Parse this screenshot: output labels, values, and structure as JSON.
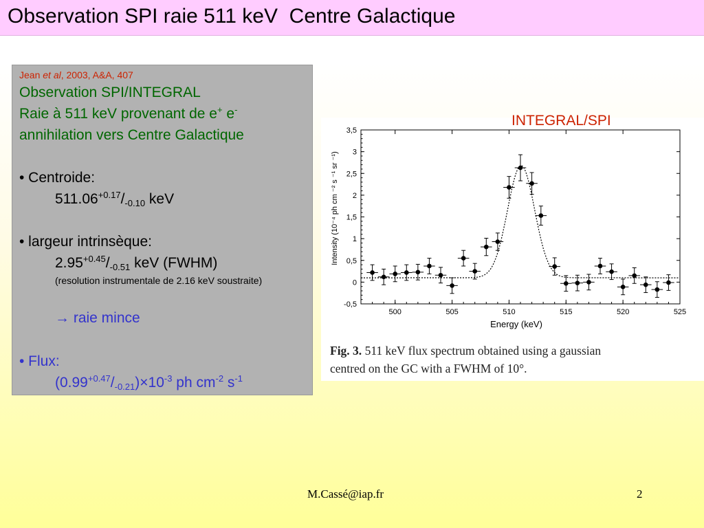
{
  "slide": {
    "title": "Observation SPI raie 511 keV  Centre Galactique",
    "footer_email": "M.Cassé@iap.fr",
    "page_number": "2"
  },
  "panel": {
    "ref_author": "Jean ",
    "ref_etal": "et al",
    "ref_rest": ", 2003, A&A, 407",
    "line1": "Observation SPI/INTEGRAL",
    "line2_a": "Raie à 511 keV provenant de e",
    "line2_sup1": "+",
    "line2_b": " e",
    "line2_sup2": "-",
    "line3": "annihilation vers Centre Galactique",
    "centroid_label": "•  Centroide:",
    "centroid_value": "511.06",
    "centroid_plus": "+0.17",
    "centroid_slash": "/",
    "centroid_minus": "-0.10",
    "centroid_unit": " keV",
    "width_label": "• largeur intrinsèque:",
    "width_value": "2.95",
    "width_plus": "+0.45",
    "width_slash": "/",
    "width_minus": "-0.51",
    "width_unit": " keV (FWHM)",
    "width_note": "(resolution instrumentale de 2.16 keV soustraite)",
    "arrow": "→",
    "conclusion": " raie mince",
    "flux_label": "• Flux:",
    "flux_open": "(0.99",
    "flux_plus": "+0.47",
    "flux_slash": "/",
    "flux_minus": "-0.21",
    "flux_times": ")×10",
    "flux_exp": "-3",
    "flux_unit1": " ph cm",
    "flux_exp2": "-2",
    "flux_unit2": " s",
    "flux_exp3": "-1"
  },
  "figure": {
    "tag": "INTEGRAL/SPI",
    "caption_label": "Fig. 3.",
    "caption_line1": " 511 keV flux spectrum obtained using a gaussian",
    "caption_line2": "centred on the GC with a FWHM of 10°."
  },
  "chart_data": {
    "type": "scatter",
    "xlabel": "Energy (keV)",
    "ylabel": "Intensity (10⁻⁴ ph cm ⁻² s ⁻¹ sr ⁻¹)",
    "xlim": [
      497,
      525
    ],
    "ylim": [
      -0.5,
      3.5
    ],
    "xticks": [
      "500",
      "505",
      "510",
      "515",
      "520",
      "525"
    ],
    "yticks": [
      "-0,5",
      "0",
      "0,5",
      "1",
      "1,5",
      "2",
      "2,5",
      "3",
      "3,5"
    ],
    "points": [
      {
        "x": 498,
        "y": 0.22,
        "err": 0.18
      },
      {
        "x": 499,
        "y": 0.12,
        "err": 0.18
      },
      {
        "x": 500,
        "y": 0.19,
        "err": 0.18
      },
      {
        "x": 501,
        "y": 0.22,
        "err": 0.18
      },
      {
        "x": 502,
        "y": 0.23,
        "err": 0.18
      },
      {
        "x": 503,
        "y": 0.37,
        "err": 0.18
      },
      {
        "x": 504,
        "y": 0.16,
        "err": 0.18
      },
      {
        "x": 505,
        "y": -0.08,
        "err": 0.18
      },
      {
        "x": 506,
        "y": 0.55,
        "err": 0.18
      },
      {
        "x": 507,
        "y": 0.25,
        "err": 0.18
      },
      {
        "x": 508,
        "y": 0.81,
        "err": 0.2
      },
      {
        "x": 509,
        "y": 0.93,
        "err": 0.2
      },
      {
        "x": 510,
        "y": 2.18,
        "err": 0.25
      },
      {
        "x": 511,
        "y": 2.63,
        "err": 0.3
      },
      {
        "x": 512,
        "y": 2.27,
        "err": 0.25
      },
      {
        "x": 512.8,
        "y": 1.53,
        "err": 0.22
      },
      {
        "x": 514,
        "y": 0.36,
        "err": 0.2
      },
      {
        "x": 515,
        "y": -0.03,
        "err": 0.18
      },
      {
        "x": 516,
        "y": -0.02,
        "err": 0.18
      },
      {
        "x": 517,
        "y": 0.0,
        "err": 0.18
      },
      {
        "x": 518,
        "y": 0.37,
        "err": 0.18
      },
      {
        "x": 519,
        "y": 0.24,
        "err": 0.18
      },
      {
        "x": 520,
        "y": -0.11,
        "err": 0.18
      },
      {
        "x": 521,
        "y": 0.15,
        "err": 0.18
      },
      {
        "x": 522,
        "y": -0.06,
        "err": 0.18
      },
      {
        "x": 523,
        "y": -0.17,
        "err": 0.18
      },
      {
        "x": 524,
        "y": -0.01,
        "err": 0.18
      }
    ],
    "fit": {
      "type": "gaussian",
      "center": 511.06,
      "fwhm": 2.8,
      "amplitude": 2.58,
      "baseline": 0.1
    }
  }
}
